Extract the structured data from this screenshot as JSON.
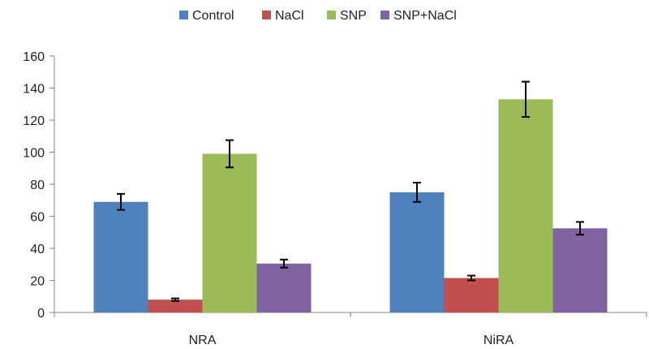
{
  "chart_data": {
    "type": "bar",
    "categories": [
      "NRA",
      "NiRA"
    ],
    "series": [
      {
        "name": "Control",
        "color": "#4f81bd",
        "values": [
          69,
          75
        ],
        "errors": [
          5,
          6
        ]
      },
      {
        "name": "NaCl",
        "color": "#c0504d",
        "values": [
          8,
          21.5
        ],
        "errors": [
          0.8,
          1.5
        ]
      },
      {
        "name": "SNP",
        "color": "#9bbb59",
        "values": [
          99,
          133
        ],
        "errors": [
          8.5,
          11
        ]
      },
      {
        "name": "SNP+NaCl",
        "color": "#8064a2",
        "values": [
          30.5,
          52.5
        ],
        "errors": [
          2.5,
          4
        ]
      }
    ],
    "ylim": [
      0,
      160
    ],
    "yticks": [
      0,
      20,
      40,
      60,
      80,
      100,
      120,
      140,
      160
    ],
    "ytick_labels": [
      "0",
      "20",
      "40",
      "60",
      "80",
      "100",
      "120",
      "140",
      "160"
    ],
    "title": "",
    "xlabel": "",
    "ylabel": "",
    "grid": false,
    "legend_position": "top"
  }
}
